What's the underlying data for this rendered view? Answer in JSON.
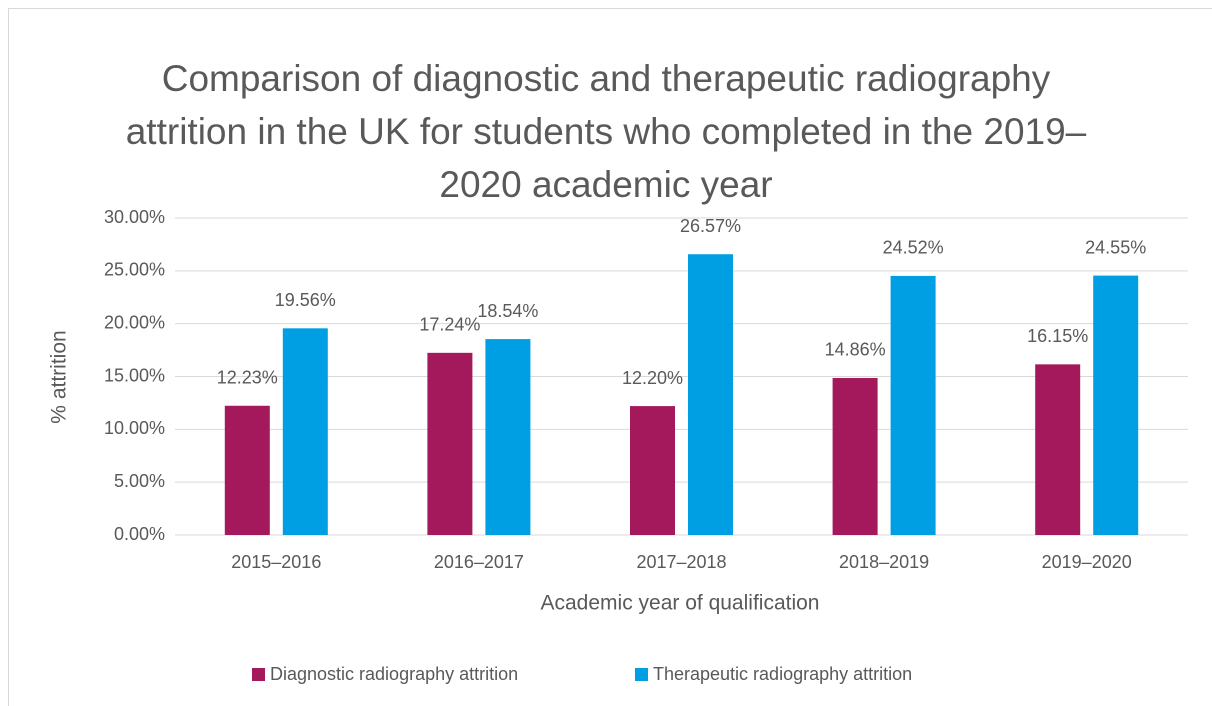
{
  "chart_data": {
    "type": "bar",
    "title": "Comparison of diagnostic and therapeutic radiography attrition in the UK for students who completed in the 2019–2020 academic year",
    "x_label": "Academic year of qualification",
    "y_label": "% attrition",
    "categories": [
      "2015–2016",
      "2016–2017",
      "2017–2018",
      "2018–2019",
      "2019–2020"
    ],
    "series": [
      {
        "name": "Diagnostic radiography attrition",
        "color": "#a3195b",
        "values": [
          12.23,
          17.24,
          12.2,
          14.86,
          16.15
        ],
        "value_labels": [
          "12.23%",
          "17.24%",
          "12.20%",
          "14.86%",
          "16.15%"
        ]
      },
      {
        "name": "Therapeutic radiography attrition",
        "color": "#009fe3",
        "values": [
          19.56,
          18.54,
          26.57,
          24.52,
          24.55
        ],
        "value_labels": [
          "19.56%",
          "18.54%",
          "26.57%",
          "24.52%",
          "24.55%"
        ]
      }
    ],
    "ylim": [
      0,
      30
    ],
    "yticks": [
      {
        "value": 0,
        "label": "0.00%"
      },
      {
        "value": 5,
        "label": "5.00%"
      },
      {
        "value": 10,
        "label": "10.00%"
      },
      {
        "value": 15,
        "label": "15.00%"
      },
      {
        "value": 20,
        "label": "20.00%"
      },
      {
        "value": 25,
        "label": "25.00%"
      },
      {
        "value": 30,
        "label": "30.00%"
      }
    ],
    "grid": true,
    "legend": "bottom"
  }
}
